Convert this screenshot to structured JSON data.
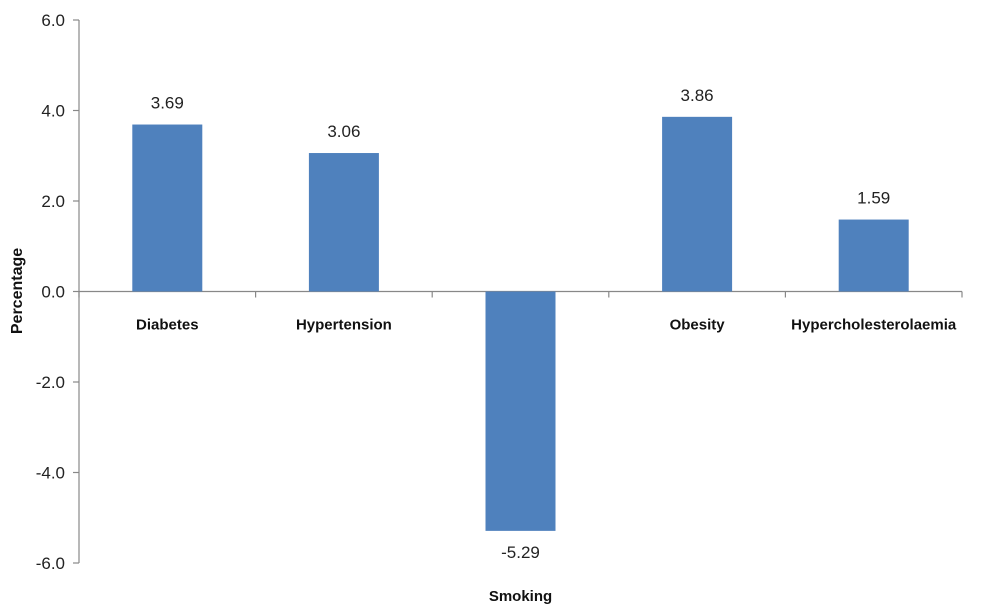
{
  "chart_data": {
    "type": "bar",
    "categories": [
      "Diabetes",
      "Hypertension",
      "Smoking",
      "Obesity",
      "Hypercholesterolaemia"
    ],
    "values": [
      3.69,
      3.06,
      -5.29,
      3.86,
      1.59
    ],
    "data_labels": [
      "3.69",
      "3.06",
      "-5.29",
      "3.86",
      "1.59"
    ],
    "title": "",
    "xlabel": "",
    "ylabel": "Percentage",
    "ylim": [
      -6.0,
      6.0
    ],
    "yticks": [
      6.0,
      4.0,
      2.0,
      0.0,
      -2.0,
      -4.0,
      -6.0
    ],
    "ytick_labels": [
      "6.0",
      "4.0",
      "2.0",
      "0.0",
      "-2.0",
      "-4.0",
      "-6.0"
    ],
    "grid": false,
    "legend": "none",
    "bar_color": "#4F81BD",
    "negative_category_label_position": "bottom"
  }
}
